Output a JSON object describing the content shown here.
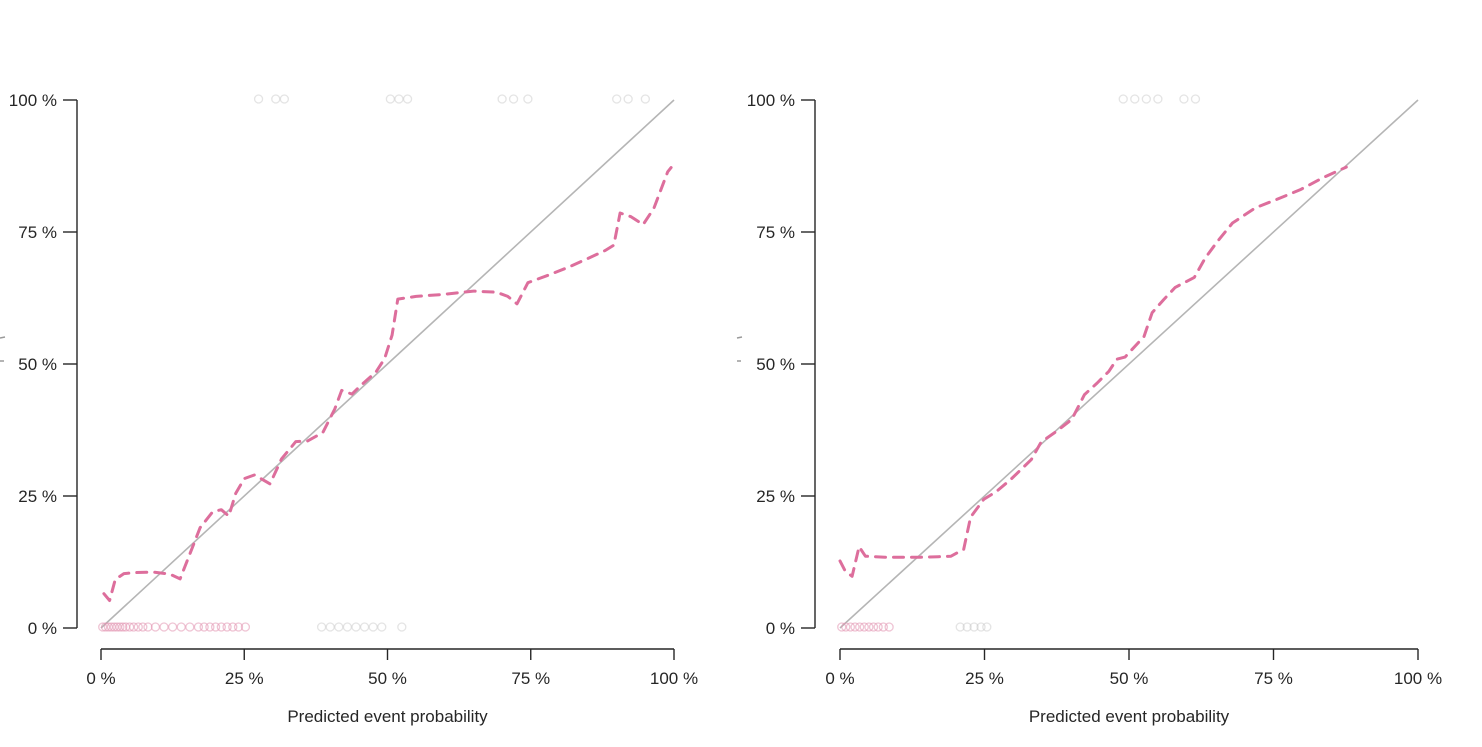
{
  "page": {
    "background": "#ffffff"
  },
  "figure": {
    "tick_suffix": " %",
    "colors": {
      "axis": "#262626",
      "text": "#262626",
      "diagonal": "#b5b5b5",
      "curve": "#dd6e9c",
      "rug_pink": "#e193b1",
      "rug_gray": "#c4c4c4",
      "fragment": "#9a9a9a"
    }
  },
  "chart_data": [
    {
      "id": "left-calibration-plot",
      "type": "line",
      "title": "",
      "xlabel": "Predicted event probability",
      "ylabel": "",
      "xlim": [
        0,
        100
      ],
      "ylim": [
        0,
        100
      ],
      "x_ticks": [
        0,
        25,
        50,
        75,
        100
      ],
      "y_ticks": [
        0,
        25,
        50,
        75,
        100
      ],
      "grid": false,
      "legend": false,
      "y_axis_label_cropped": true,
      "diagonal": [
        [
          0,
          0
        ],
        [
          100,
          100
        ]
      ],
      "series": [
        {
          "name": "flexible-calibration-curve",
          "style": "dashed",
          "points": [
            [
              0.5,
              6.5
            ],
            [
              1.5,
              5.2
            ],
            [
              2.5,
              9.2
            ],
            [
              4,
              10.3
            ],
            [
              6,
              10.5
            ],
            [
              9,
              10.6
            ],
            [
              12,
              10.2
            ],
            [
              13.8,
              9.3
            ],
            [
              15.5,
              14
            ],
            [
              17.3,
              19
            ],
            [
              19.5,
              22
            ],
            [
              21,
              22.4
            ],
            [
              22.3,
              21.2
            ],
            [
              23.5,
              25.5
            ],
            [
              25,
              28.3
            ],
            [
              26.8,
              29
            ],
            [
              29.5,
              27.3
            ],
            [
              31.5,
              32
            ],
            [
              34,
              35.3
            ],
            [
              36,
              35.4
            ],
            [
              38.7,
              37
            ],
            [
              40.8,
              41.5
            ],
            [
              42,
              45
            ],
            [
              43.8,
              44.3
            ],
            [
              45.2,
              45.8
            ],
            [
              48,
              48.5
            ],
            [
              49.5,
              51
            ],
            [
              50.8,
              55.5
            ],
            [
              51.8,
              62.3
            ],
            [
              55,
              62.8
            ],
            [
              60,
              63.2
            ],
            [
              65,
              63.8
            ],
            [
              69,
              63.6
            ],
            [
              71,
              62.8
            ],
            [
              72.6,
              61.4
            ],
            [
              74.5,
              65.4
            ],
            [
              78,
              66.8
            ],
            [
              81.5,
              68.3
            ],
            [
              85,
              70
            ],
            [
              88,
              71.5
            ],
            [
              89.5,
              72.5
            ],
            [
              90.6,
              78.6
            ],
            [
              92.5,
              77.9
            ],
            [
              94.6,
              76.4
            ],
            [
              96.5,
              79.5
            ],
            [
              98.9,
              86.4
            ],
            [
              99.5,
              87.2
            ]
          ]
        }
      ],
      "rug_bottom_pink": [
        0.3,
        0.8,
        1.3,
        1.8,
        2.3,
        2.8,
        3.3,
        3.8,
        4.3,
        5,
        5.7,
        6.5,
        7.3,
        8.2,
        9.5,
        11,
        12.5,
        14,
        15.5,
        17,
        18,
        19,
        20,
        21,
        22,
        23,
        24,
        25.2
      ],
      "rug_bottom_gray": [
        38.5,
        40,
        41.5,
        43,
        44.5,
        46,
        47.5,
        49,
        52.5
      ],
      "rug_top_gray": [
        27.5,
        30.5,
        32,
        50.5,
        52,
        53.5,
        70,
        72,
        74.5,
        90,
        92,
        95
      ]
    },
    {
      "id": "right-calibration-plot",
      "type": "line",
      "title": "",
      "xlabel": "Predicted event probability",
      "ylabel": "",
      "xlim": [
        0,
        100
      ],
      "ylim": [
        0,
        100
      ],
      "x_ticks": [
        0,
        25,
        50,
        75,
        100
      ],
      "y_ticks": [
        0,
        25,
        50,
        75,
        100
      ],
      "grid": false,
      "legend": false,
      "y_axis_label_cropped": true,
      "diagonal": [
        [
          0,
          0
        ],
        [
          100,
          100
        ]
      ],
      "series": [
        {
          "name": "flexible-calibration-curve",
          "style": "dashed",
          "points": [
            [
              0,
              12.7
            ],
            [
              0.9,
              10.8
            ],
            [
              2.1,
              9.8
            ],
            [
              3.3,
              15.4
            ],
            [
              4.4,
              13.6
            ],
            [
              7.8,
              13.4
            ],
            [
              11,
              13.4
            ],
            [
              14,
              13.4
            ],
            [
              17,
              13.5
            ],
            [
              19.2,
              13.6
            ],
            [
              21.4,
              14.9
            ],
            [
              22.6,
              21
            ],
            [
              24.9,
              24.4
            ],
            [
              27,
              25.8
            ],
            [
              29.6,
              28.2
            ],
            [
              33.1,
              31.9
            ],
            [
              34.8,
              35.2
            ],
            [
              37.5,
              37.3
            ],
            [
              40.1,
              39.5
            ],
            [
              42.3,
              44.2
            ],
            [
              44.5,
              46.4
            ],
            [
              46.5,
              48.6
            ],
            [
              47.9,
              50.9
            ],
            [
              49.3,
              51.3
            ],
            [
              52.6,
              55.2
            ],
            [
              54,
              59.7
            ],
            [
              56,
              62.2
            ],
            [
              58,
              64.5
            ],
            [
              61.3,
              66.4
            ],
            [
              63.2,
              70.1
            ],
            [
              65.3,
              73.2
            ],
            [
              67.9,
              76.7
            ],
            [
              71.9,
              79.6
            ],
            [
              75.4,
              81.1
            ],
            [
              79.6,
              83
            ],
            [
              83.6,
              85.3
            ],
            [
              87.6,
              87.3
            ]
          ]
        }
      ],
      "rug_bottom_pink": [
        0.3,
        1,
        1.8,
        2.6,
        3.4,
        4.2,
        5,
        5.8,
        6.6,
        7.5,
        8.5
      ],
      "rug_bottom_gray": [
        20.8,
        22,
        23.2,
        24.4,
        25.4
      ],
      "rug_top_gray": [
        49,
        51,
        53,
        55,
        59.5,
        61.5
      ]
    }
  ]
}
